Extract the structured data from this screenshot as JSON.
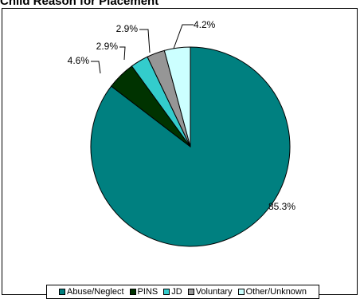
{
  "page": {
    "title": "Child Reason for Placement"
  },
  "chart_data": {
    "type": "pie",
    "title": "Child Reason for Placement",
    "legend_position": "bottom",
    "slices": [
      {
        "name": "Abuse/Neglect",
        "value": 85.3,
        "label": "85.3%",
        "color": "#008080"
      },
      {
        "name": "PINS",
        "value": 4.6,
        "label": "4.6%",
        "color": "#003300"
      },
      {
        "name": "JD",
        "value": 2.9,
        "label": "2.9%",
        "color": "#33CCCC"
      },
      {
        "name": "Voluntary",
        "value": 2.9,
        "label": "2.9%",
        "color": "#969696"
      },
      {
        "name": "Other/Unknown",
        "value": 4.2,
        "label": "4.2%",
        "color": "#CCFFFF"
      }
    ]
  }
}
